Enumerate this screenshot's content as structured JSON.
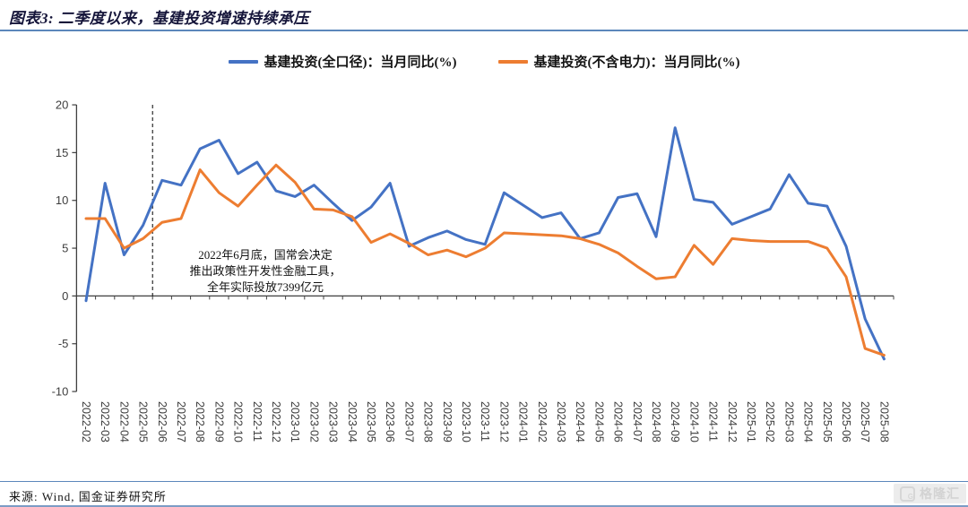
{
  "header": {
    "title": "图表3: 二季度以来，基建投资增速持续承压"
  },
  "legend": [
    {
      "label": "基建投资(全口径)：当月同比(%)",
      "color": "#4472C4"
    },
    {
      "label": "基建投资(不含电力)：当月同比(%)",
      "color": "#ED7D31"
    }
  ],
  "footer": {
    "source": "来源: Wind, 国金证券研究所"
  },
  "watermark": {
    "icon": "G",
    "text": "格隆汇"
  },
  "chart_data": {
    "type": "line",
    "title": "图表3: 二季度以来，基建投资增速持续承压",
    "xlabel": "",
    "ylabel": "",
    "ylim": [
      -10,
      20
    ],
    "yticks": [
      20,
      15,
      10,
      5,
      0,
      -5,
      -10
    ],
    "grid": false,
    "legend_position": "top",
    "categories": [
      "2022-02",
      "2022-03",
      "2022-04",
      "2022-05",
      "2022-06",
      "2022-07",
      "2022-08",
      "2022-09",
      "2022-10",
      "2022-11",
      "2022-12",
      "2023-01",
      "2023-02",
      "2023-03",
      "2023-04",
      "2023-05",
      "2023-06",
      "2023-07",
      "2023-08",
      "2023-09",
      "2023-10",
      "2023-11",
      "2023-12",
      "2024-01",
      "2024-02",
      "2024-03",
      "2024-04",
      "2024-05",
      "2024-06",
      "2024-07",
      "2024-08",
      "2024-09",
      "2024-10",
      "2024-11",
      "2024-12",
      "2025-01",
      "2025-02",
      "2025-03",
      "2025-04",
      "2025-05",
      "2025-06",
      "2025-07",
      "2025-08"
    ],
    "series": [
      {
        "name": "基建投资(全口径)：当月同比(%)",
        "color": "#4472C4",
        "values": [
          -0.5,
          11.8,
          4.3,
          7.4,
          12.1,
          11.6,
          15.4,
          16.3,
          12.8,
          14.0,
          11.0,
          10.4,
          11.6,
          9.7,
          7.9,
          9.3,
          11.8,
          5.2,
          6.1,
          6.8,
          5.9,
          5.4,
          10.8,
          9.5,
          8.2,
          8.7,
          6.0,
          6.6,
          10.3,
          10.7,
          6.2,
          17.6,
          10.1,
          9.8,
          7.5,
          8.3,
          9.1,
          12.7,
          9.7,
          9.4,
          5.2,
          -2.4,
          -6.6
        ]
      },
      {
        "name": "基建投资(不含电力)：当月同比(%)",
        "color": "#ED7D31",
        "values": [
          8.1,
          8.1,
          5.0,
          6.0,
          7.7,
          8.1,
          13.2,
          10.8,
          9.4,
          11.6,
          13.7,
          11.9,
          9.1,
          9.0,
          8.3,
          5.6,
          6.5,
          5.5,
          4.3,
          4.8,
          4.1,
          5.0,
          6.6,
          6.5,
          6.4,
          6.3,
          6.0,
          5.4,
          4.5,
          3.1,
          1.8,
          2.0,
          5.3,
          3.3,
          6.0,
          5.8,
          5.7,
          5.7,
          5.7,
          5.0,
          2.0,
          -5.5,
          -6.2
        ]
      }
    ],
    "annotation": {
      "vline_category": "2022-06",
      "text_lines": [
        "2022年6月底，国常会决定",
        "推出政策性开发性金融工具，",
        "全年实际投放7399亿元"
      ]
    }
  }
}
